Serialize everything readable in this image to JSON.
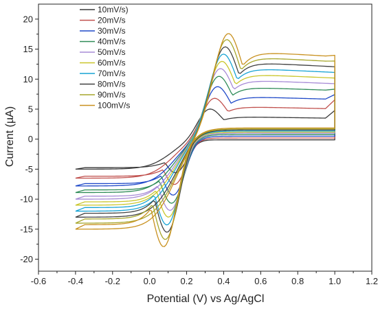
{
  "chart_data": {
    "type": "line",
    "xlabel": "Potential (V) vs Ag/AgCl",
    "ylabel": "Current (µA)",
    "xlim": [
      -0.6,
      1.2
    ],
    "ylim": [
      -22,
      22.5
    ],
    "xticks": [
      -0.6,
      -0.4,
      -0.2,
      0.0,
      0.2,
      0.4,
      0.6,
      0.8,
      1.0,
      1.2
    ],
    "xtick_labels": [
      "-0.6",
      "-0.4",
      "-0.2",
      "0.0",
      "0.2",
      "0.4",
      "0.6",
      "0.8",
      "1.0",
      "1.2"
    ],
    "yticks": [
      -20,
      -15,
      -10,
      -5,
      0,
      5,
      10,
      15,
      20
    ],
    "ytick_labels": [
      "-20",
      "-15",
      "-10",
      "-5",
      "0",
      "5",
      "10",
      "15",
      "20"
    ],
    "grid": false,
    "legend_position": "top-left",
    "series": [
      {
        "name": "10mV/s)",
        "color": "#3a3a3a",
        "E0": -0.4,
        "Eend": 1.0,
        "E_anodic_peak": 0.3,
        "I_anodic_peak": 6.4,
        "I_plateau_fwd": 3.8,
        "I_end_fwd": 5.1,
        "E_cathodic_peak": 0.16,
        "I_cathodic_peak": -7.0,
        "I_start": -5.0
      },
      {
        "name": "20mV/s",
        "color": "#c0504d",
        "E0": -0.4,
        "Eend": 1.0,
        "E_anodic_peak": 0.33,
        "I_anodic_peak": 8.1,
        "I_plateau_fwd": 5.5,
        "I_end_fwd": 7.0,
        "E_cathodic_peak": 0.15,
        "I_cathodic_peak": -8.9,
        "I_start": -6.5
      },
      {
        "name": "30mV/s",
        "color": "#1f49c8",
        "E0": -0.4,
        "Eend": 1.0,
        "E_anodic_peak": 0.35,
        "I_anodic_peak": 10.0,
        "I_plateau_fwd": 7.2,
        "I_end_fwd": 8.0,
        "E_cathodic_peak": 0.14,
        "I_cathodic_peak": -10.6,
        "I_start": -7.8
      },
      {
        "name": "40mV/s",
        "color": "#2e8b57",
        "E0": -0.4,
        "Eend": 1.0,
        "E_anodic_peak": 0.36,
        "I_anodic_peak": 11.7,
        "I_plateau_fwd": 8.8,
        "I_end_fwd": 9.0,
        "E_cathodic_peak": 0.13,
        "I_cathodic_peak": -11.9,
        "I_start": -8.9
      },
      {
        "name": "50mV/s",
        "color": "#a78bd6",
        "E0": -0.4,
        "Eend": 1.0,
        "E_anodic_peak": 0.37,
        "I_anodic_peak": 12.9,
        "I_plateau_fwd": 10.0,
        "I_end_fwd": 10.0,
        "E_cathodic_peak": 0.12,
        "I_cathodic_peak": -13.0,
        "I_start": -10.0
      },
      {
        "name": "60mV/s",
        "color": "#c9c62a",
        "E0": -0.4,
        "Eend": 1.0,
        "E_anodic_peak": 0.38,
        "I_anodic_peak": 14.0,
        "I_plateau_fwd": 11.0,
        "I_end_fwd": 11.0,
        "E_cathodic_peak": 0.11,
        "I_cathodic_peak": -14.0,
        "I_start": -11.0
      },
      {
        "name": "70mV/s",
        "color": "#17a3d4",
        "E0": -0.4,
        "Eend": 1.0,
        "E_anodic_peak": 0.39,
        "I_anodic_peak": 15.1,
        "I_plateau_fwd": 12.0,
        "I_end_fwd": 12.0,
        "E_cathodic_peak": 0.1,
        "I_cathodic_peak": -15.2,
        "I_start": -12.0
      },
      {
        "name": "80mV/s",
        "color": "#404040",
        "E0": -0.4,
        "Eend": 1.0,
        "E_anodic_peak": 0.4,
        "I_anodic_peak": 16.3,
        "I_plateau_fwd": 13.0,
        "I_end_fwd": 13.0,
        "E_cathodic_peak": 0.1,
        "I_cathodic_peak": -16.4,
        "I_start": -13.0
      },
      {
        "name": "90mV/s",
        "color": "#a6a62a",
        "E0": -0.4,
        "Eend": 1.0,
        "E_anodic_peak": 0.41,
        "I_anodic_peak": 17.4,
        "I_plateau_fwd": 13.9,
        "I_end_fwd": 14.0,
        "E_cathodic_peak": 0.09,
        "I_cathodic_peak": -17.5,
        "I_start": -14.0
      },
      {
        "name": "100mV/s",
        "color": "#c8901e",
        "E0": -0.4,
        "Eend": 1.0,
        "E_anodic_peak": 0.42,
        "I_anodic_peak": 18.3,
        "I_plateau_fwd": 14.8,
        "I_end_fwd": 15.0,
        "E_cathodic_peak": 0.08,
        "I_cathodic_peak": -18.6,
        "I_start": -15.0
      }
    ]
  }
}
